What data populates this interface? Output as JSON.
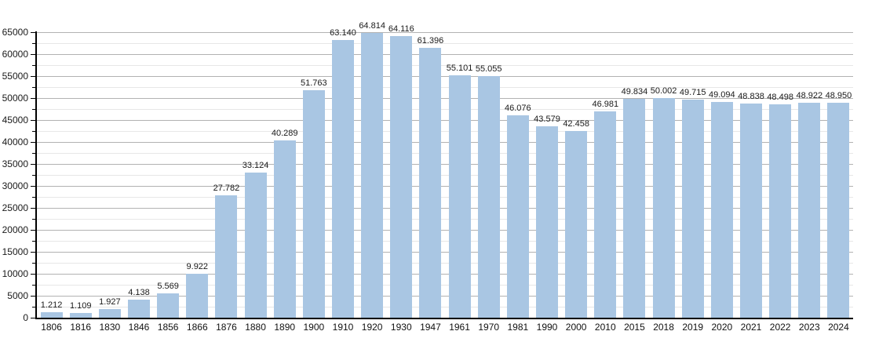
{
  "chart_data": {
    "type": "bar",
    "title": "",
    "xlabel": "",
    "ylabel": "",
    "categories": [
      "1806",
      "1816",
      "1830",
      "1846",
      "1856",
      "1866",
      "1876",
      "1880",
      "1890",
      "1900",
      "1910",
      "1920",
      "1930",
      "1947",
      "1961",
      "1970",
      "1981",
      "1990",
      "2000",
      "2010",
      "2015",
      "2018",
      "2019",
      "2020",
      "2021",
      "2022",
      "2023",
      "2024"
    ],
    "values": [
      1212,
      1109,
      1927,
      4138,
      5569,
      9922,
      27782,
      33124,
      40289,
      51763,
      63140,
      64814,
      64116,
      61396,
      55101,
      55055,
      46076,
      43579,
      42458,
      46981,
      49834,
      50002,
      49715,
      49094,
      48838,
      48498,
      48922,
      48950
    ],
    "value_labels": [
      "1.212",
      "1.109",
      "1.927",
      "4.138",
      "5.569",
      "9.922",
      "27.782",
      "33.124",
      "40.289",
      "51.763",
      "63.140",
      "64.814",
      "64.116",
      "61.396",
      "55.101",
      "55.055",
      "46.076",
      "43.579",
      "42.458",
      "46.981",
      "49.834",
      "50.002",
      "49.715",
      "49.094",
      "48.838",
      "48.498",
      "48.922",
      "48.950"
    ],
    "y_tick_labels": [
      "0",
      "5000",
      "10000",
      "15000",
      "20000",
      "25000",
      "30000",
      "35000",
      "40000",
      "45000",
      "50000",
      "55000",
      "60000",
      "65000"
    ],
    "ylim": [
      0,
      65000
    ],
    "y_major_step": 5000,
    "y_minor_step": 2500,
    "grid": true,
    "legend": "none",
    "colors": {
      "bar_fill": "#a9c6e3",
      "axis": "#000000",
      "major_gridline": "#b2b2b2",
      "minor_gridline": "#e7e7e7",
      "tick": "#000000",
      "label_text": "#1a1a1a"
    }
  }
}
